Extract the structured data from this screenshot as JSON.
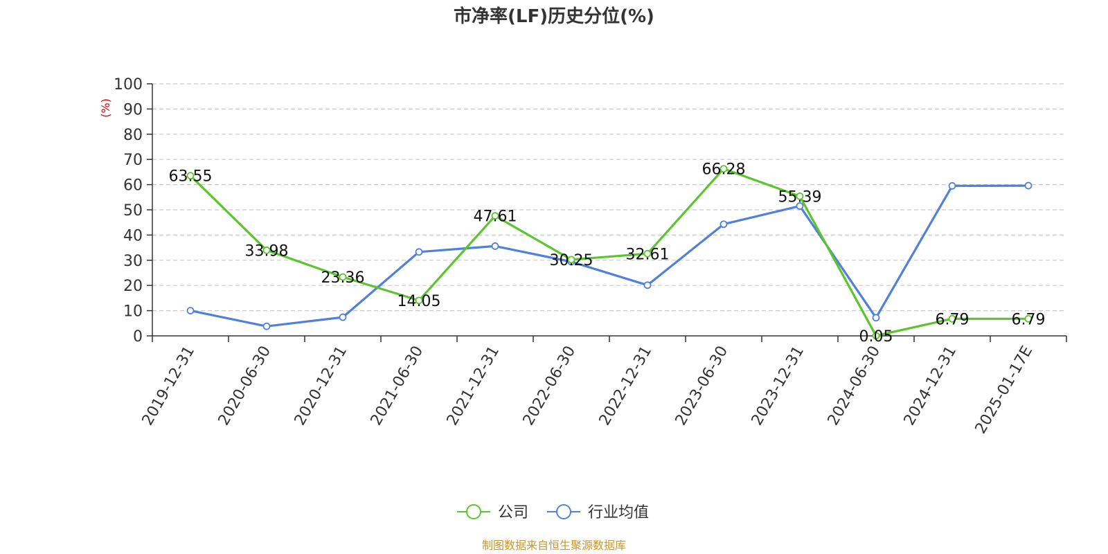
{
  "chart_data": {
    "type": "line",
    "title": "市净率(LF)历史分位(%)",
    "ylabel": "(%)",
    "ylim": [
      0,
      100
    ],
    "yticks": [
      0,
      10,
      20,
      30,
      40,
      50,
      60,
      70,
      80,
      90,
      100
    ],
    "categories": [
      "2019-12-31",
      "2020-06-30",
      "2020-12-31",
      "2021-06-30",
      "2021-12-31",
      "2022-06-30",
      "2022-12-31",
      "2023-06-30",
      "2023-12-31",
      "2024-06-30",
      "2024-12-31",
      "2025-01-17E"
    ],
    "series": [
      {
        "name": "公司",
        "color": "#5cc42c",
        "values": [
          63.55,
          33.98,
          23.36,
          14.05,
          47.61,
          30.25,
          32.61,
          66.28,
          55.39,
          0.05,
          6.79,
          6.79
        ],
        "labels": [
          "63.55",
          "33.98",
          "23.36",
          "14.05",
          "47.61",
          "30.25",
          "32.61",
          "66.28",
          "55.39",
          "0.05",
          "6.79",
          "6.79"
        ]
      },
      {
        "name": "行业均值",
        "color": "#4f81dc",
        "values": [
          10.0,
          3.8,
          7.4,
          33.3,
          35.6,
          29.4,
          20.1,
          44.3,
          51.5,
          7.2,
          59.5,
          59.6
        ]
      }
    ],
    "grid": true,
    "legend_position": "bottom-center",
    "unit_color": "#e00000"
  },
  "footer": {
    "source": "制图数据来自恒生聚源数据库",
    "source_color": "#c8962a"
  }
}
